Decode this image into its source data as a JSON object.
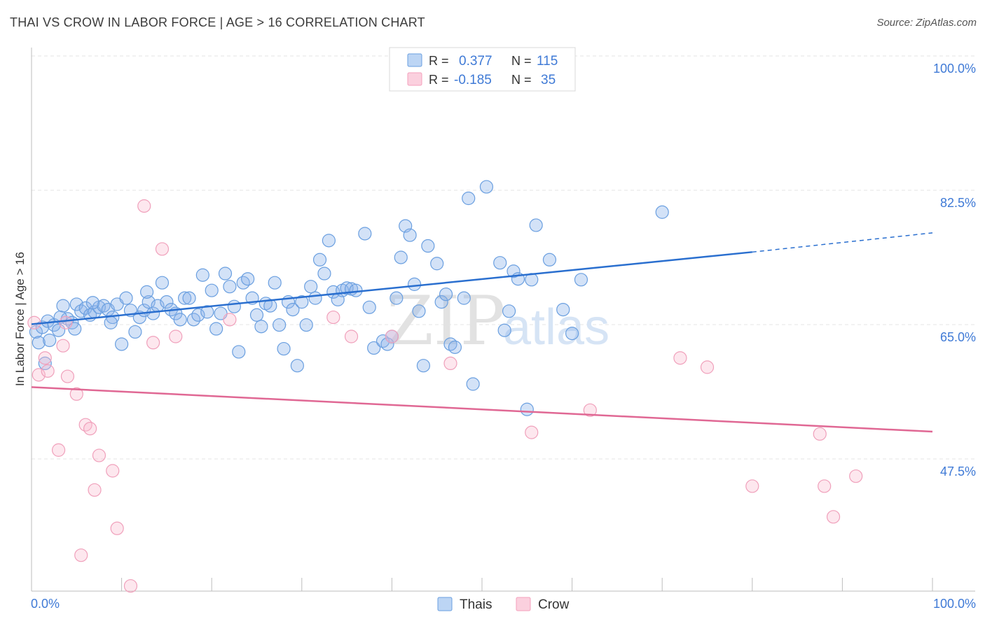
{
  "title": "THAI VS CROW IN LABOR FORCE | AGE > 16 CORRELATION CHART",
  "source": "Source: ZipAtlas.com",
  "watermark": {
    "zip": "ZIP",
    "atlas": "atlas"
  },
  "colors": {
    "thais": "#6a9fe0",
    "crow": "#f4a0bc",
    "thais_line": "#2a6fcf",
    "crow_line": "#e06894",
    "axis_label": "#3f7ad6"
  },
  "legend_top": [
    {
      "r_label": "R =",
      "r_value": "0.377",
      "n_label": "N =",
      "n_value": "115"
    },
    {
      "r_label": "R =",
      "r_value": "-0.185",
      "n_label": "N =",
      "n_value": "35"
    }
  ],
  "legend_bottom": [
    "Thais",
    "Crow"
  ],
  "chart_data": {
    "type": "scatter",
    "title": "THAI VS CROW IN LABOR FORCE | AGE > 16 CORRELATION CHART",
    "xlabel": "",
    "ylabel": "In Labor Force | Age > 16",
    "x_tick_labels": [
      "0.0%",
      "100.0%"
    ],
    "y_tick_labels": [
      "100.0%",
      "82.5%",
      "65.0%",
      "47.5%"
    ],
    "y_ticks": [
      100.0,
      82.5,
      65.0,
      47.5
    ],
    "xlim": [
      0,
      100
    ],
    "ylim": [
      30,
      102
    ],
    "grid": true,
    "legend_placement": "top-center",
    "series": [
      {
        "name": "Thais",
        "R": 0.377,
        "N": 115,
        "trend": {
          "x_solid": [
            0,
            80
          ],
          "y_solid": [
            66.6,
            76.0
          ],
          "x_dashed": [
            80,
            100
          ],
          "y_dashed": [
            76.0,
            78.5
          ]
        },
        "points": [
          [
            0.5,
            65.6
          ],
          [
            1.2,
            66.2
          ],
          [
            1.8,
            67.0
          ],
          [
            2.5,
            66.5
          ],
          [
            3.0,
            65.8
          ],
          [
            3.5,
            69.0
          ],
          [
            4.0,
            67.3
          ],
          [
            4.5,
            66.8
          ],
          [
            5.0,
            69.2
          ],
          [
            5.5,
            68.3
          ],
          [
            6.0,
            68.7
          ],
          [
            6.5,
            67.8
          ],
          [
            7.0,
            68.2
          ],
          [
            7.5,
            68.8
          ],
          [
            8.0,
            69.0
          ],
          [
            8.5,
            68.5
          ],
          [
            9.0,
            67.5
          ],
          [
            9.5,
            69.2
          ],
          [
            10.0,
            64.0
          ],
          [
            11.0,
            68.4
          ],
          [
            11.5,
            65.6
          ],
          [
            12.0,
            67.5
          ],
          [
            12.5,
            68.4
          ],
          [
            13.0,
            69.5
          ],
          [
            13.5,
            68.0
          ],
          [
            14.0,
            69.0
          ],
          [
            14.5,
            72.0
          ],
          [
            15.0,
            69.5
          ],
          [
            15.5,
            68.5
          ],
          [
            16.0,
            68.0
          ],
          [
            16.5,
            67.2
          ],
          [
            17.0,
            70.0
          ],
          [
            17.5,
            70.0
          ],
          [
            18.0,
            67.2
          ],
          [
            18.5,
            67.8
          ],
          [
            19.0,
            73.0
          ],
          [
            19.5,
            68.2
          ],
          [
            20.0,
            71.0
          ],
          [
            20.5,
            66.0
          ],
          [
            21.0,
            68.0
          ],
          [
            21.5,
            73.2
          ],
          [
            22.0,
            71.5
          ],
          [
            22.5,
            68.9
          ],
          [
            23.0,
            63.0
          ],
          [
            23.5,
            72.0
          ],
          [
            24.0,
            72.5
          ],
          [
            24.5,
            70.0
          ],
          [
            25.0,
            67.8
          ],
          [
            25.5,
            66.3
          ],
          [
            26.0,
            69.3
          ],
          [
            26.5,
            69.0
          ],
          [
            27.0,
            72.0
          ],
          [
            27.5,
            66.5
          ],
          [
            28.0,
            63.4
          ],
          [
            28.5,
            69.5
          ],
          [
            29.0,
            68.5
          ],
          [
            29.5,
            61.2
          ],
          [
            30.0,
            69.5
          ],
          [
            30.5,
            66.5
          ],
          [
            31.0,
            71.5
          ],
          [
            31.5,
            70.0
          ],
          [
            32.0,
            75.0
          ],
          [
            32.5,
            73.2
          ],
          [
            33.0,
            77.5
          ],
          [
            33.5,
            70.8
          ],
          [
            34.0,
            69.8
          ],
          [
            34.5,
            71.0
          ],
          [
            35.0,
            71.3
          ],
          [
            35.5,
            71.2
          ],
          [
            36.0,
            71.0
          ],
          [
            37.0,
            78.4
          ],
          [
            37.5,
            68.8
          ],
          [
            38.0,
            63.5
          ],
          [
            39.0,
            64.4
          ],
          [
            39.5,
            64.0
          ],
          [
            40.0,
            65.0
          ],
          [
            40.5,
            70.0
          ],
          [
            41.0,
            75.3
          ],
          [
            41.5,
            79.4
          ],
          [
            42.0,
            78.2
          ],
          [
            42.5,
            71.8
          ],
          [
            43.0,
            68.3
          ],
          [
            43.5,
            61.2
          ],
          [
            44.0,
            76.8
          ],
          [
            45.0,
            74.5
          ],
          [
            45.5,
            69.5
          ],
          [
            46.0,
            70.5
          ],
          [
            46.5,
            64.0
          ],
          [
            47.0,
            63.6
          ],
          [
            48.0,
            70.0
          ],
          [
            48.5,
            83.0
          ],
          [
            49.0,
            58.8
          ],
          [
            50.5,
            84.5
          ],
          [
            52.0,
            74.6
          ],
          [
            52.5,
            65.8
          ],
          [
            53.0,
            68.3
          ],
          [
            53.5,
            73.5
          ],
          [
            54.0,
            72.5
          ],
          [
            55.0,
            55.5
          ],
          [
            55.5,
            72.4
          ],
          [
            56.0,
            79.5
          ],
          [
            57.5,
            75.0
          ],
          [
            59.0,
            68.5
          ],
          [
            60.0,
            65.4
          ],
          [
            61.0,
            72.4
          ],
          [
            70.0,
            81.2
          ],
          [
            0.8,
            64.2
          ],
          [
            1.5,
            61.5
          ],
          [
            2.0,
            64.5
          ],
          [
            3.2,
            67.5
          ],
          [
            4.8,
            66.0
          ],
          [
            6.8,
            69.4
          ],
          [
            8.8,
            66.8
          ],
          [
            10.5,
            70.0
          ],
          [
            12.8,
            70.8
          ]
        ]
      },
      {
        "name": "Crow",
        "R": -0.185,
        "N": 35,
        "trend": {
          "x_solid": [
            0,
            100
          ],
          "y_solid": [
            58.4,
            52.6
          ]
        },
        "points": [
          [
            0.3,
            66.8
          ],
          [
            0.8,
            60.0
          ],
          [
            1.5,
            62.2
          ],
          [
            1.8,
            60.5
          ],
          [
            3.0,
            50.2
          ],
          [
            3.5,
            63.8
          ],
          [
            3.8,
            66.8
          ],
          [
            4.0,
            59.8
          ],
          [
            5.0,
            57.5
          ],
          [
            5.5,
            36.5
          ],
          [
            6.0,
            53.5
          ],
          [
            6.5,
            53.0
          ],
          [
            7.0,
            45.0
          ],
          [
            7.5,
            49.5
          ],
          [
            9.0,
            47.5
          ],
          [
            9.5,
            40.0
          ],
          [
            11.0,
            32.5
          ],
          [
            12.5,
            82.0
          ],
          [
            13.5,
            64.2
          ],
          [
            14.5,
            76.4
          ],
          [
            16.0,
            65.0
          ],
          [
            22.0,
            67.2
          ],
          [
            33.5,
            67.5
          ],
          [
            35.5,
            65.0
          ],
          [
            40.0,
            65.0
          ],
          [
            46.5,
            61.5
          ],
          [
            55.5,
            52.5
          ],
          [
            62.0,
            55.4
          ],
          [
            72.0,
            62.2
          ],
          [
            75.0,
            61.0
          ],
          [
            80.0,
            45.5
          ],
          [
            87.5,
            52.3
          ],
          [
            88.0,
            45.5
          ],
          [
            89.0,
            41.5
          ],
          [
            91.5,
            46.8
          ]
        ]
      }
    ]
  }
}
